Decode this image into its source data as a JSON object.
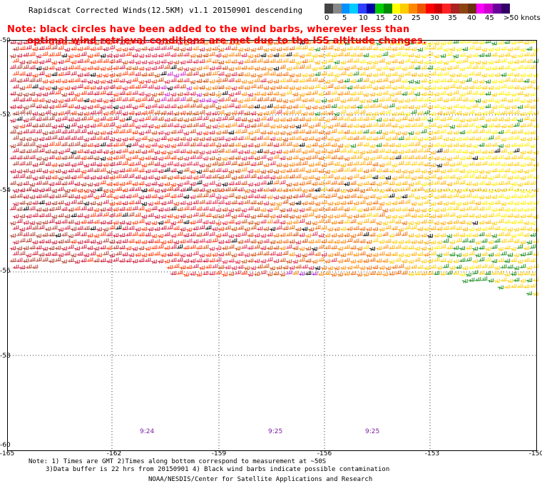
{
  "title": "Rapidscat Corrected Winds(12.5KM) v1.1 20150901 descending",
  "note_line1": "Note: black circles have been added to the wind barbs, wherever less than",
  "note_line2": "optimal wind retrieval conditions are met due to the ISS altitude changes.",
  "colorbar": {
    "colors": [
      "#444444",
      "#888888",
      "#0090ff",
      "#00ccff",
      "#3040ff",
      "#0000aa",
      "#00cc00",
      "#008800",
      "#ffff00",
      "#ffcc00",
      "#ff8800",
      "#ee5500",
      "#ff0000",
      "#cc0000",
      "#ff2222",
      "#aa2222",
      "#8b4513",
      "#6b3010",
      "#ff00ff",
      "#cc00cc",
      "#660099",
      "#330066"
    ],
    "labels": [
      "0",
      "5",
      "10",
      "15",
      "20",
      "25",
      "30",
      "35",
      "40",
      "45",
      ">50 knots"
    ]
  },
  "lat_labels": [
    "-50",
    "-52",
    "-54",
    "-56",
    "-58",
    "-60"
  ],
  "lon_labels": [
    "-165",
    "-162",
    "-159",
    "-156",
    "-153",
    "-150"
  ],
  "time_labels": [
    "9:24",
    "9:25",
    "9:25"
  ],
  "footer": {
    "line1": "Note: 1) Times are GMT 2)Times along bottom correspond to measurement at ~50S",
    "line2": "3)Data buffer is 22 hrs from 20150901 4) Black wind barbs indicate possible contamination",
    "line3": "NOAA/NESDIS/Center for Satellite Applications and Research"
  }
}
